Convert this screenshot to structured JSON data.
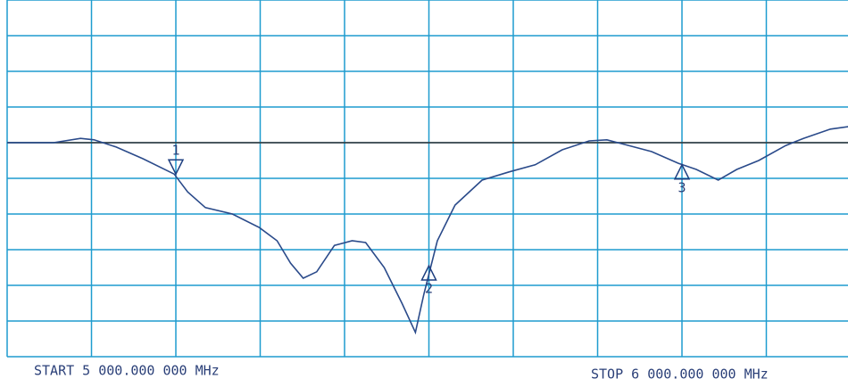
{
  "chart_data": {
    "type": "line",
    "start_label": "START 5 000.000 000 MHz",
    "stop_label": "STOP 6 000.000 000 MHz",
    "xlim": [
      5000,
      6000
    ],
    "ylim": [
      -6,
      4
    ],
    "xticks": [
      5000,
      5100,
      5200,
      5300,
      5400,
      5500,
      5600,
      5700,
      5800,
      5900,
      6000
    ],
    "yticks": [
      -6,
      -5,
      -4,
      -3,
      -2,
      -1,
      0,
      1,
      2,
      3,
      4
    ],
    "grid": true,
    "grid_color": "#1e9ccf",
    "reference": 0,
    "reference_color": "#333333",
    "x": [
      5000,
      5055,
      5087,
      5103,
      5129,
      5161,
      5198,
      5214,
      5235,
      5267,
      5299,
      5320,
      5336,
      5351,
      5367,
      5388,
      5409,
      5425,
      5447,
      5468,
      5484,
      5494,
      5510,
      5531,
      5563,
      5595,
      5626,
      5658,
      5690,
      5711,
      5732,
      5764,
      5796,
      5817,
      5843,
      5865,
      5891,
      5923,
      5944,
      5976,
      5997
    ],
    "series": [
      {
        "color": "#2a4a8a",
        "values": [
          0,
          0,
          0.12,
          0.08,
          -0.12,
          -0.45,
          -0.88,
          -1.38,
          -1.82,
          -2,
          -2.38,
          -2.75,
          -3.38,
          -3.8,
          -3.62,
          -2.88,
          -2.75,
          -2.8,
          -3.5,
          -4.5,
          -5.32,
          -4.25,
          -2.75,
          -1.75,
          -1.05,
          -0.82,
          -0.62,
          -0.2,
          0.05,
          0.08,
          -0.05,
          -0.25,
          -0.58,
          -0.75,
          -1.05,
          -0.75,
          -0.5,
          -0.08,
          0.12,
          0.38,
          0.45
        ]
      }
    ],
    "markers": [
      {
        "label": "1",
        "x": 5200,
        "y": -0.88,
        "direction": "down"
      },
      {
        "label": "2",
        "x": 5500,
        "y": -3.45,
        "direction": "up"
      },
      {
        "label": "3",
        "x": 5800,
        "y": -0.62,
        "direction": "up"
      }
    ],
    "marker_color": "#1e3f80"
  }
}
